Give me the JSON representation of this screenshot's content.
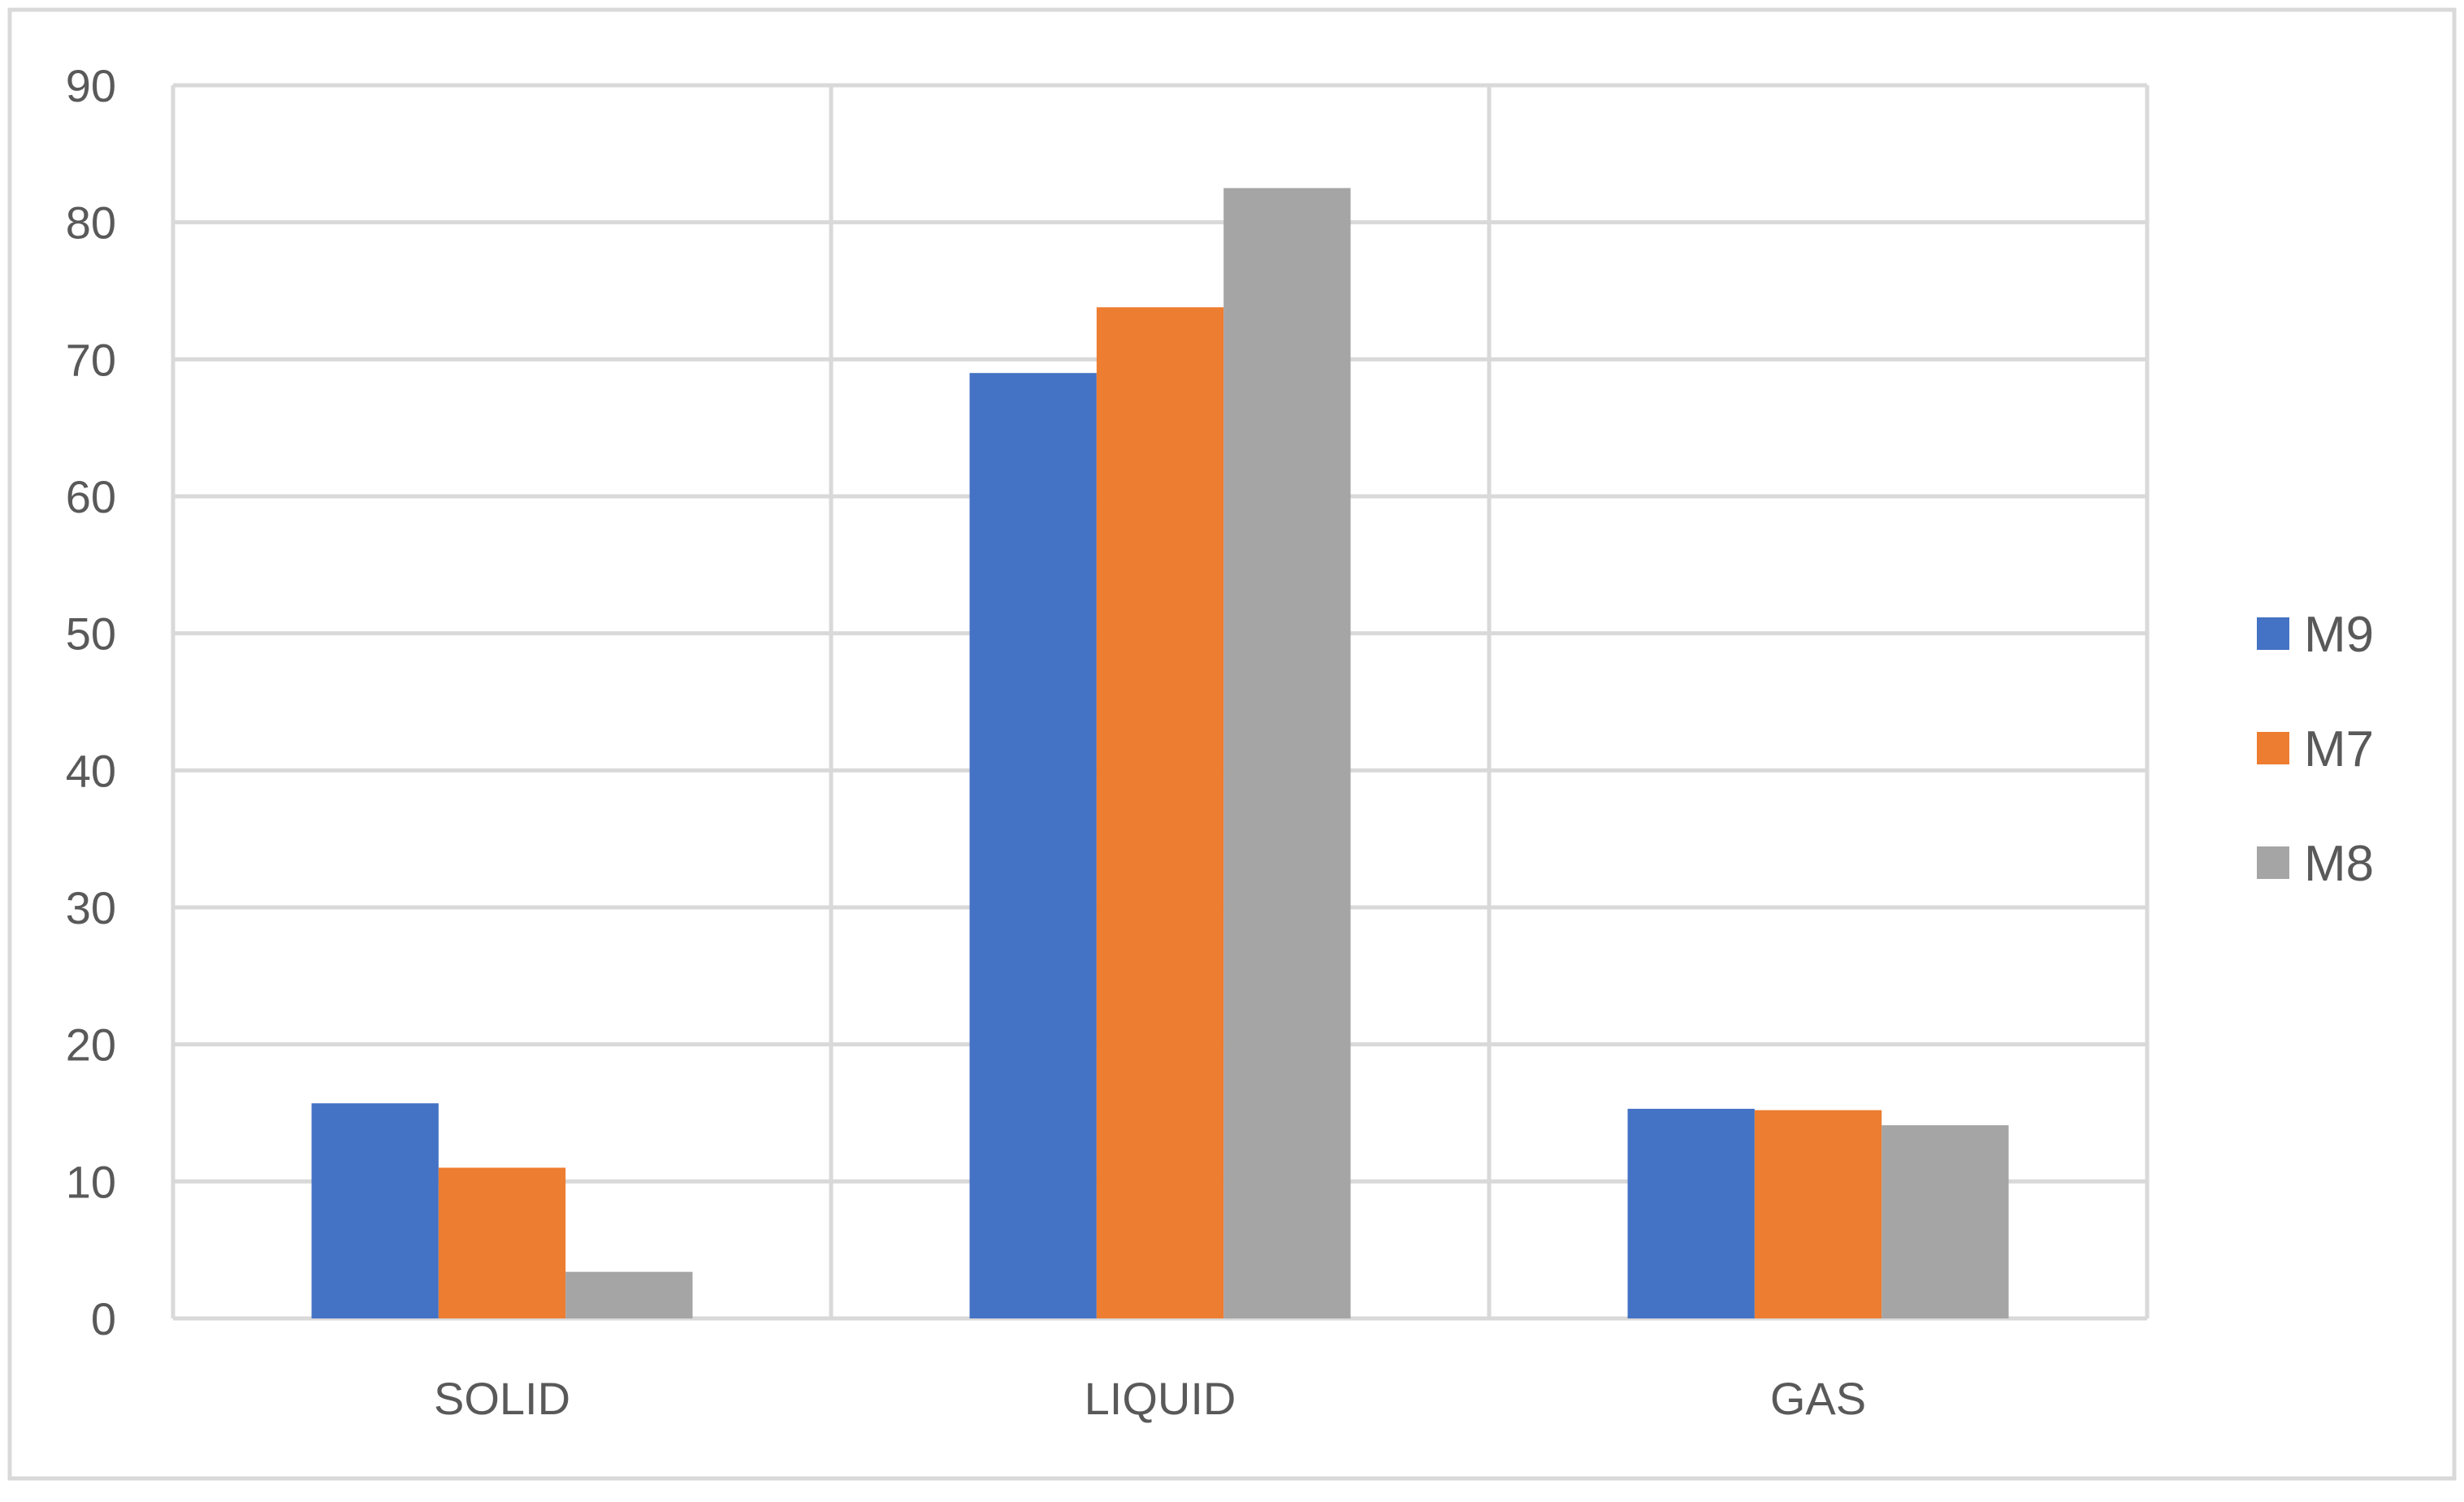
{
  "chart_data": {
    "type": "bar",
    "title": "",
    "xlabel": "",
    "ylabel": "",
    "categories": [
      "SOLID",
      "LIQUID",
      "GAS"
    ],
    "series": [
      {
        "name": "M9",
        "color": "#4472C4",
        "values": [
          15.7,
          69.0,
          15.3
        ]
      },
      {
        "name": "M7",
        "color": "#ED7D31",
        "values": [
          11.0,
          73.8,
          15.2
        ]
      },
      {
        "name": "M8",
        "color": "#A5A5A5",
        "values": [
          3.4,
          82.5,
          14.1
        ]
      }
    ],
    "ylim": [
      0,
      90
    ],
    "yticks": [
      0,
      10,
      20,
      30,
      40,
      50,
      60,
      70,
      80,
      90
    ],
    "grid": true,
    "legend_position": "right"
  }
}
